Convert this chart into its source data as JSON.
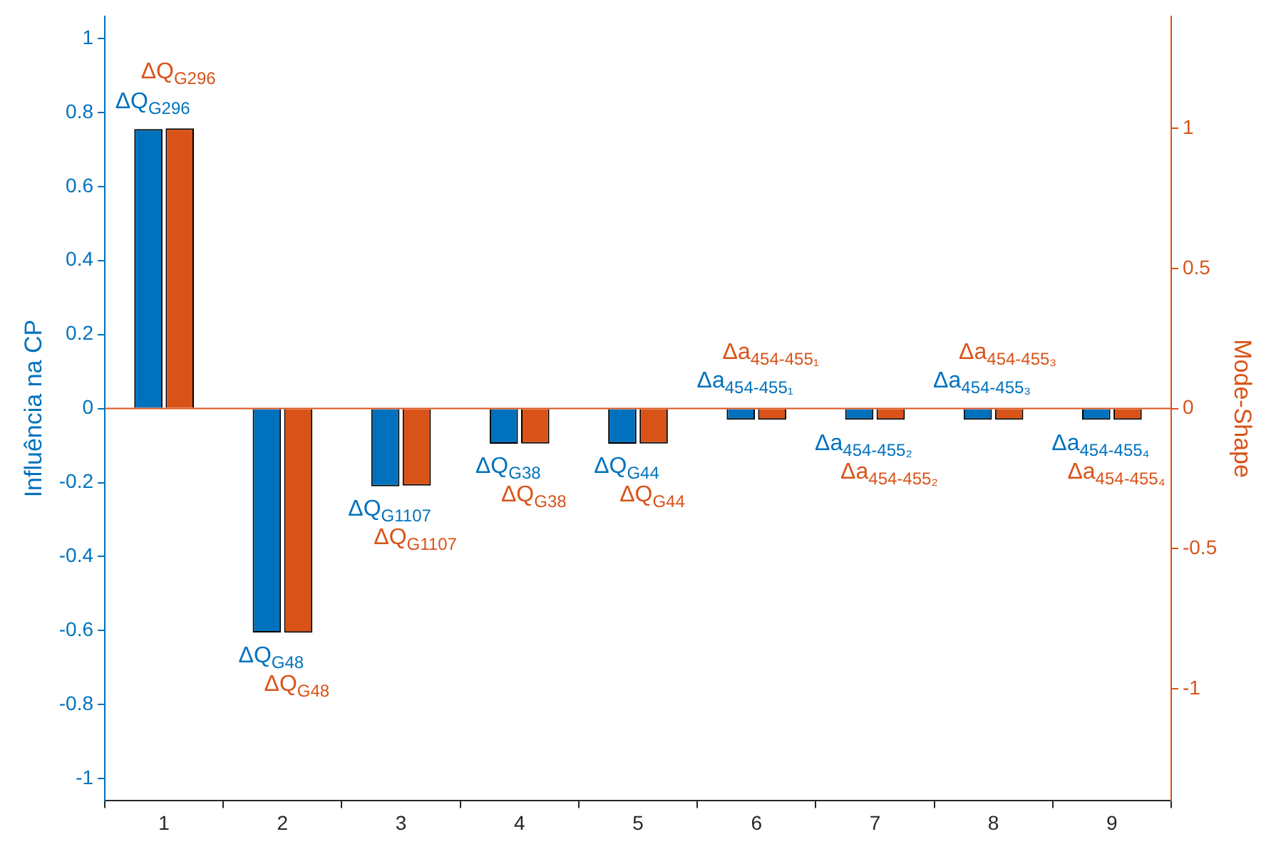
{
  "chart_data": {
    "type": "bar",
    "ylabel": "Influência na CP",
    "y2label": "Mode-Shape",
    "categories": [
      "1",
      "2",
      "3",
      "4",
      "5",
      "6",
      "7",
      "8",
      "9"
    ],
    "series": [
      {
        "color": "#0072bd",
        "values": [
          0.755,
          -0.605,
          -0.21,
          -0.095,
          -0.095,
          -0.03,
          -0.03,
          -0.03,
          -0.03
        ]
      },
      {
        "color": "#d95319",
        "axis": "y2",
        "values": [
          1,
          -0.8,
          -0.275,
          -0.125,
          -0.125,
          -0.04,
          -0.04,
          -0.04,
          -0.04
        ]
      }
    ],
    "ylim": [
      -1.06,
      1.06
    ],
    "yticks": [
      -1,
      -0.8,
      -0.6,
      -0.4,
      -0.2,
      0,
      0.2,
      0.4,
      0.6,
      0.8,
      1
    ],
    "y2lim": [
      -1.4,
      1.4
    ],
    "y2ticks": [
      -1,
      -0.5,
      0,
      0.5,
      1
    ],
    "ref_lines": [
      {
        "axis": "y",
        "value": 0,
        "color": "#d95319"
      }
    ],
    "annotations": [
      "ΔQ$_{G296}$",
      "ΔQ$_{G48}$",
      "ΔQ$_{G1107}$",
      "ΔQ$_{G38}$",
      "ΔQ$_{G44}$",
      "Δa$_{454-455₁}$",
      "Δa$_{454-455₂}$",
      "Δa$_{454-455₃}$",
      "Δa$_{454-455₄}$",
      "ΔQ$_{G296}$",
      "ΔQ$_{G48}$",
      "ΔQ$_{G1107}$",
      "ΔQ$_{G38}$",
      "ΔQ$_{G44}$",
      "Δa$_{454-455₁}$",
      "Δa$_{454-455₂}$",
      "Δa$_{454-455₃}$",
      "Δa$_{454-455₄}$"
    ],
    "grid": false,
    "legend": false
  }
}
